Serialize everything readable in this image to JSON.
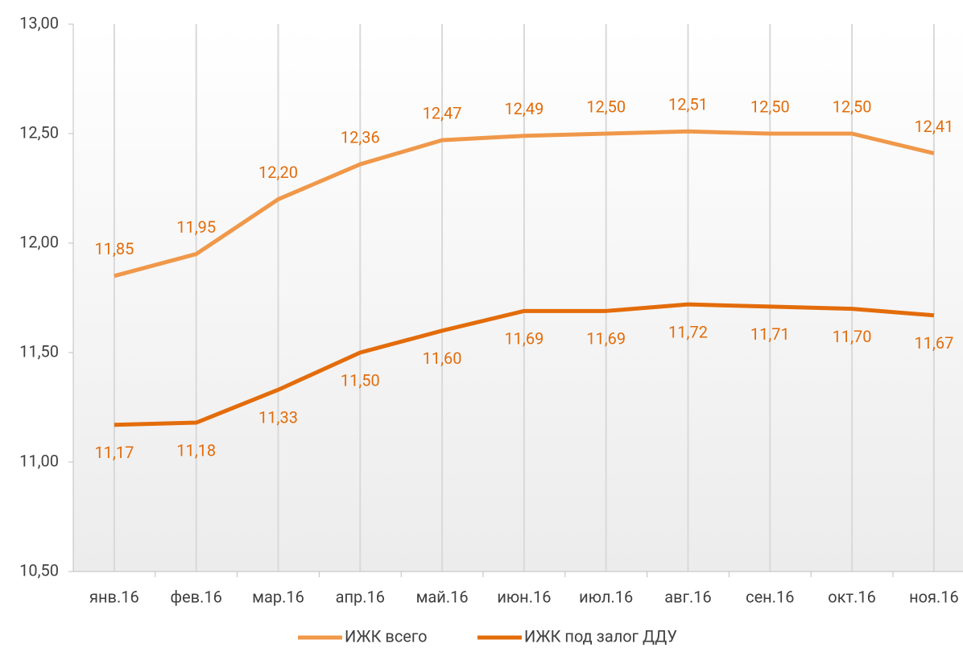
{
  "chart_data": {
    "type": "line",
    "categories": [
      "янв.16",
      "фев.16",
      "мар.16",
      "апр.16",
      "май.16",
      "июн.16",
      "июл.16",
      "авг.16",
      "сен.16",
      "окт.16",
      "ноя.16"
    ],
    "series": [
      {
        "name": "ИЖК всего",
        "color": "#f0984a",
        "values": [
          11.85,
          11.95,
          12.2,
          12.36,
          12.47,
          12.49,
          12.5,
          12.51,
          12.5,
          12.5,
          12.41
        ],
        "value_labels": [
          "11,85",
          "11,95",
          "12,20",
          "12,36",
          "12,47",
          "12,49",
          "12,50",
          "12,51",
          "12,50",
          "12,50",
          "12,41"
        ]
      },
      {
        "name": "ИЖК под залог ДДУ",
        "color": "#e36c0a",
        "values": [
          11.17,
          11.18,
          11.33,
          11.5,
          11.6,
          11.69,
          11.69,
          11.72,
          11.71,
          11.7,
          11.67
        ],
        "value_labels": [
          "11,17",
          "11,18",
          "11,33",
          "11,50",
          "11,60",
          "11,69",
          "11,69",
          "11,72",
          "11,71",
          "11,70",
          "11,67"
        ]
      }
    ],
    "ylim": [
      10.5,
      13
    ],
    "yticks": [
      {
        "value": 10.5,
        "label": "10,50"
      },
      {
        "value": 11,
        "label": "11,00"
      },
      {
        "value": 11.5,
        "label": "11,50"
      },
      {
        "value": 12,
        "label": "12,00"
      },
      {
        "value": 12.5,
        "label": "12,50"
      },
      {
        "value": 13,
        "label": "13,00"
      }
    ],
    "grid": true,
    "legend": "bottom"
  }
}
